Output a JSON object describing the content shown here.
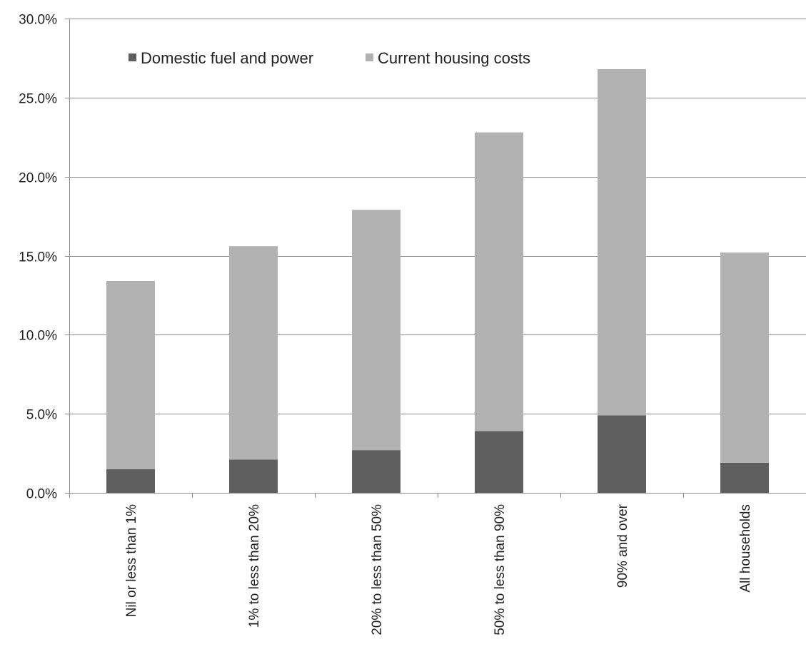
{
  "chart_data": {
    "type": "bar",
    "stacked": true,
    "categories": [
      "Nil or less than 1%",
      "1% to less than 20%",
      "20% to less than 50%",
      "50% to less than 90%",
      "90% and over",
      "All households"
    ],
    "series": [
      {
        "name": "Domestic fuel and power",
        "color": "#5f5f5f",
        "values": [
          1.5,
          2.1,
          2.7,
          3.9,
          4.9,
          1.9
        ]
      },
      {
        "name": "Current housing costs",
        "color": "#b2b2b2",
        "values": [
          11.9,
          13.5,
          15.2,
          18.9,
          21.9,
          13.3
        ]
      }
    ],
    "yticks": [
      "0.0%",
      "5.0%",
      "10.0%",
      "15.0%",
      "20.0%",
      "25.0%",
      "30.0%"
    ],
    "ylim": [
      0,
      30
    ],
    "grid": true,
    "legend_position": "top-left",
    "title": "",
    "xlabel": "",
    "ylabel": ""
  }
}
